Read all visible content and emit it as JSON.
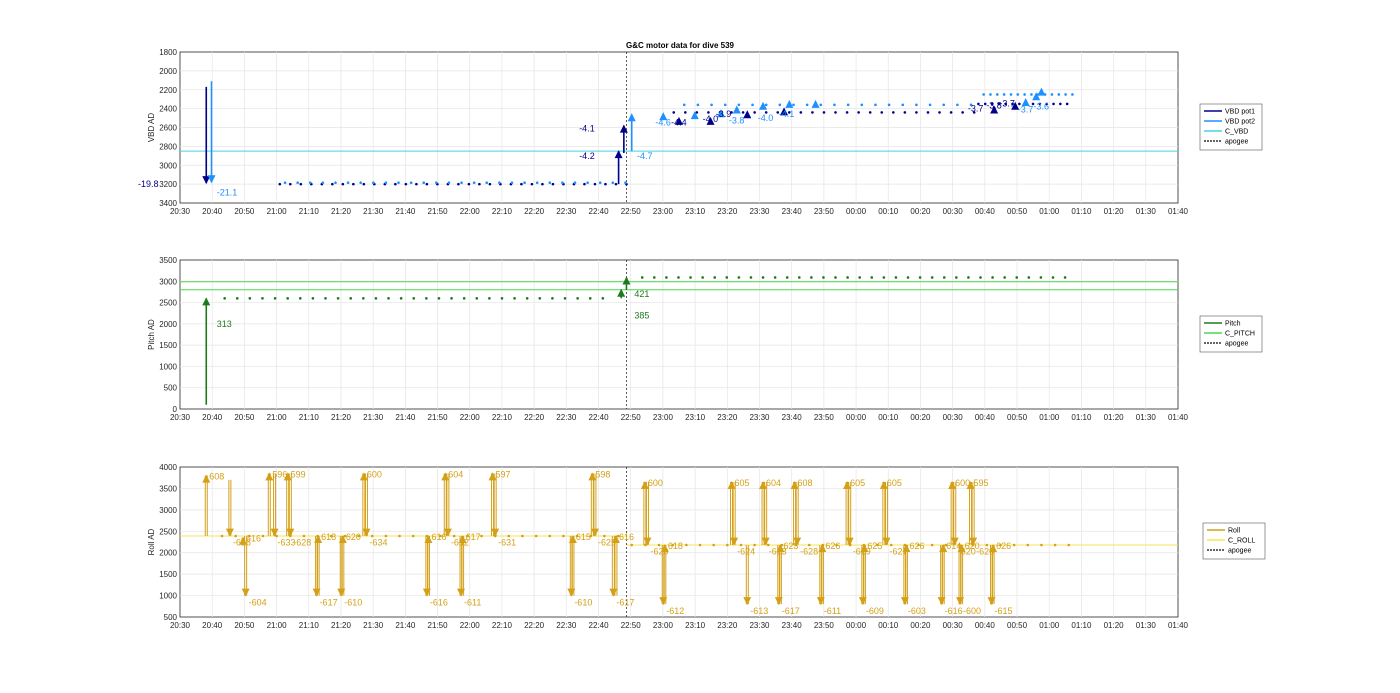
{
  "figure": {
    "title": "G&C motor data for dive 539"
  },
  "colors": {
    "vbd_pot1": "#00008b",
    "vbd_pot2": "#1e90ff",
    "c_vbd": "#48d1e8",
    "pitch": "#1f7a1f",
    "c_pitch": "#4cd94c",
    "roll": "#d4a017",
    "c_roll": "#f5e55a",
    "apogee": "#333333",
    "grid": "#e5e5e5",
    "axis": "#262626"
  },
  "chart_data": [
    {
      "type": "scatter",
      "ylabel": "VBD AD",
      "yreverse": true,
      "ylim": [
        1800,
        3400
      ],
      "yticks": [
        1800,
        2000,
        2200,
        2400,
        2600,
        2800,
        3000,
        3200,
        3400
      ],
      "xlim": [
        0,
        190
      ],
      "xticks": [
        0,
        10,
        20,
        30,
        40,
        50,
        60,
        70,
        80,
        90,
        100,
        110,
        120,
        130,
        140,
        150,
        160,
        170,
        180,
        190
      ],
      "xticklabels": [
        "20:30",
        "20:40",
        "20:50",
        "21:00",
        "21:10",
        "21:20",
        "21:30",
        "21:40",
        "21:50",
        "22:00",
        "22:10",
        "22:20",
        "22:30",
        "22:40",
        "22:50",
        "23:00",
        "23:10",
        "23:20",
        "23:30",
        "23:40",
        "23:50",
        "00:00",
        "00:10",
        "00:20",
        "00:30",
        "00:40",
        "00:50",
        "01:00",
        "01:10",
        "01:20",
        "01:30",
        "01:40"
      ],
      "apogee_x": 85,
      "hlines": [
        {
          "y": 2850,
          "color": "c_vbd"
        }
      ],
      "legend": [
        "VBD pot1",
        "VBD pot2",
        "C_VBD",
        "apogee"
      ],
      "dot_series": [
        {
          "color": "vbd_pot1",
          "y": 3200,
          "x0": 19,
          "x1": 85.5,
          "step": 2
        },
        {
          "color": "vbd_pot2",
          "y": 3185,
          "x0": 20,
          "x1": 85.5,
          "step": 2.4
        },
        {
          "color": "vbd_pot1",
          "y": 2440,
          "x0": 94,
          "x1": 152,
          "step": 2.2
        },
        {
          "color": "vbd_pot2",
          "y": 2360,
          "x0": 96,
          "x1": 152,
          "step": 2.6
        },
        {
          "color": "vbd_pot1",
          "y": 2350,
          "x0": 152,
          "x1": 169,
          "step": 1.3
        },
        {
          "color": "vbd_pot2",
          "y": 2250,
          "x0": 153,
          "x1": 171,
          "step": 1.3
        }
      ],
      "arrows": [
        {
          "x": 5,
          "y0": 2170,
          "y1": 3190,
          "color": "vbd_pot1",
          "label": "-19.8",
          "lx": -8,
          "ly": 3200,
          "lc": "vbd_pot1"
        },
        {
          "x": 6,
          "y0": 2110,
          "y1": 3180,
          "color": "vbd_pot2",
          "label": "-21.1",
          "lx": 7,
          "ly": 3290,
          "lc": "vbd_pot2"
        },
        {
          "x": 83.5,
          "y0": 3200,
          "y1": 2850,
          "color": "vbd_pot1",
          "label": "-4.2",
          "lx": 76,
          "ly": 2900,
          "lc": "vbd_pot1"
        },
        {
          "x": 84.5,
          "y0": 2870,
          "y1": 2580,
          "color": "vbd_pot1",
          "label": "-4.1",
          "lx": 76,
          "ly": 2610,
          "lc": "vbd_pot1"
        },
        {
          "x": 86,
          "y0": 2850,
          "y1": 2460,
          "color": "vbd_pot2",
          "label": "-4.7",
          "lx": 87,
          "ly": 2900,
          "lc": "vbd_pot2"
        }
      ],
      "tri_markers": [
        {
          "x": 92,
          "y": 2490,
          "color": "vbd_pot2"
        },
        {
          "x": 95,
          "y": 2540,
          "color": "vbd_pot1"
        },
        {
          "x": 98,
          "y": 2480,
          "color": "vbd_pot2"
        },
        {
          "x": 101,
          "y": 2540,
          "color": "vbd_pot1"
        },
        {
          "x": 103,
          "y": 2460,
          "color": "vbd_pot2"
        },
        {
          "x": 106,
          "y": 2420,
          "color": "vbd_pot2"
        },
        {
          "x": 108,
          "y": 2470,
          "color": "vbd_pot1"
        },
        {
          "x": 111,
          "y": 2380,
          "color": "vbd_pot2"
        },
        {
          "x": 115,
          "y": 2440,
          "color": "vbd_pot1"
        },
        {
          "x": 116,
          "y": 2360,
          "color": "vbd_pot2"
        },
        {
          "x": 121,
          "y": 2360,
          "color": "vbd_pot2"
        },
        {
          "x": 155,
          "y": 2420,
          "color": "vbd_pot1"
        },
        {
          "x": 159,
          "y": 2380,
          "color": "vbd_pot1"
        },
        {
          "x": 161,
          "y": 2340,
          "color": "vbd_pot2"
        },
        {
          "x": 163,
          "y": 2280,
          "color": "vbd_pot2"
        },
        {
          "x": 164,
          "y": 2230,
          "color": "vbd_pot2"
        }
      ],
      "labels": [
        {
          "x": 90.5,
          "y": 2580,
          "t": "-4.6",
          "c": "vbd_pot2"
        },
        {
          "x": 93.5,
          "y": 2580,
          "t": "-4.4",
          "c": "vbd_pot1"
        },
        {
          "x": 99.5,
          "y": 2540,
          "t": "-4.0",
          "c": "vbd_pot1"
        },
        {
          "x": 102,
          "y": 2490,
          "t": "-3.9",
          "c": "vbd_pot1"
        },
        {
          "x": 104.5,
          "y": 2560,
          "t": "-3.8",
          "c": "vbd_pot2"
        },
        {
          "x": 110,
          "y": 2530,
          "t": "-4.0",
          "c": "vbd_pot2"
        },
        {
          "x": 114,
          "y": 2490,
          "t": "-4.1",
          "c": "vbd_pot2"
        },
        {
          "x": 150,
          "y": 2430,
          "t": "-3.7",
          "c": "vbd_pot1"
        },
        {
          "x": 153.5,
          "y": 2400,
          "t": "-3.8",
          "c": "vbd_pot1"
        },
        {
          "x": 156,
          "y": 2380,
          "t": "-3.7",
          "c": "vbd_pot1"
        },
        {
          "x": 159.5,
          "y": 2440,
          "t": "-3.7",
          "c": "vbd_pot2"
        },
        {
          "x": 162.5,
          "y": 2410,
          "t": "-3.6",
          "c": "vbd_pot2"
        }
      ]
    },
    {
      "type": "scatter",
      "ylabel": "Pitch AD",
      "yreverse": false,
      "ylim": [
        0,
        3500
      ],
      "yticks": [
        0,
        500,
        1000,
        1500,
        2000,
        2500,
        3000,
        3500
      ],
      "xlim": [
        0,
        190
      ],
      "xticks": [
        0,
        10,
        20,
        30,
        40,
        50,
        60,
        70,
        80,
        90,
        100,
        110,
        120,
        130,
        140,
        150,
        160,
        170,
        180,
        190
      ],
      "xticklabels": [
        "20:30",
        "20:40",
        "20:50",
        "21:00",
        "21:10",
        "21:20",
        "21:30",
        "21:40",
        "21:50",
        "22:00",
        "22:10",
        "22:20",
        "22:30",
        "22:40",
        "22:50",
        "23:00",
        "23:10",
        "23:20",
        "23:30",
        "23:40",
        "23:50",
        "00:00",
        "00:10",
        "00:20",
        "00:30",
        "00:40",
        "00:50",
        "01:00",
        "01:10",
        "01:20",
        "01:30",
        "01:40"
      ],
      "apogee_x": 85,
      "hlines": [
        {
          "y": 2990,
          "color": "c_pitch"
        },
        {
          "y": 2800,
          "color": "c_pitch",
          "x0": 0,
          "x1": 85
        },
        {
          "y": 2800,
          "color": "c_pitch",
          "x0": 85,
          "x1": 190
        }
      ],
      "legend": [
        "Pitch",
        "C_PITCH",
        "apogee"
      ],
      "dot_series": [
        {
          "color": "pitch",
          "y": 2600,
          "x0": 8.5,
          "x1": 82,
          "step": 2.4
        },
        {
          "color": "pitch",
          "y": 3090,
          "x0": 88,
          "x1": 169,
          "step": 2.3
        }
      ],
      "arrows": [
        {
          "x": 5,
          "y0": 100,
          "y1": 2600,
          "color": "pitch",
          "label": "313",
          "lx": 7,
          "ly": 2000,
          "lc": "pitch"
        },
        {
          "x": 84,
          "y0": 2600,
          "y1": 2800,
          "color": "pitch",
          "label": "385",
          "lx": 86.5,
          "ly": 2200,
          "lc": "pitch"
        },
        {
          "x": 85,
          "y0": 2800,
          "y1": 3090,
          "color": "pitch",
          "label": "421",
          "lx": 86.5,
          "ly": 2700,
          "lc": "pitch"
        }
      ],
      "tri_markers": [],
      "labels": []
    },
    {
      "type": "scatter",
      "ylabel": "Roll AD",
      "yreverse": false,
      "ylim": [
        500,
        4000
      ],
      "yticks": [
        500,
        1000,
        1500,
        2000,
        2500,
        3000,
        3500,
        4000
      ],
      "xlim": [
        0,
        190
      ],
      "xticks": [
        0,
        10,
        20,
        30,
        40,
        50,
        60,
        70,
        80,
        90,
        100,
        110,
        120,
        130,
        140,
        150,
        160,
        170,
        180,
        190
      ],
      "xticklabels": [
        "20:30",
        "20:40",
        "20:50",
        "21:00",
        "21:10",
        "21:20",
        "21:30",
        "21:40",
        "21:50",
        "22:00",
        "22:10",
        "22:20",
        "22:30",
        "22:40",
        "22:50",
        "23:00",
        "23:10",
        "23:20",
        "23:30",
        "23:40",
        "23:50",
        "00:00",
        "00:10",
        "00:20",
        "00:30",
        "00:40",
        "00:50",
        "01:00",
        "01:10",
        "01:20",
        "01:30",
        "01:40"
      ],
      "apogee_x": 85,
      "hlines": [
        {
          "y": 2390,
          "color": "c_roll",
          "x0": 0,
          "x1": 85
        },
        {
          "y": 2180,
          "color": "c_roll",
          "x0": 85,
          "x1": 190
        }
      ],
      "legend": [
        "Roll",
        "C_ROLL",
        "apogee"
      ],
      "dot_series": [
        {
          "color": "roll",
          "y": 2390,
          "x0": 8,
          "x1": 84,
          "step": 2.6
        },
        {
          "color": "roll",
          "y": 2180,
          "x0": 86,
          "x1": 170,
          "step": 2.6
        }
      ],
      "roll_events": [
        {
          "x": 5,
          "y0": 2390,
          "y1": 3800,
          "label": "608"
        },
        {
          "x": 9.5,
          "y0": 3700,
          "y1": 2400,
          "label": "-626"
        },
        {
          "x": 12,
          "y0": 2300,
          "y1": 2350,
          "label": "616"
        },
        {
          "x": 12.5,
          "y0": 2390,
          "y1": 1000,
          "label": "-604"
        },
        {
          "x": 17,
          "y0": 2390,
          "y1": 3850,
          "label": "596"
        },
        {
          "x": 18,
          "y0": 3850,
          "y1": 2400,
          "label": "-633"
        },
        {
          "x": 20.5,
          "y0": 2390,
          "y1": 3850,
          "label": "599"
        },
        {
          "x": 21,
          "y0": 3850,
          "y1": 2400,
          "label": "-628"
        },
        {
          "x": 26,
          "y0": 2390,
          "y1": 1000,
          "label": "-617"
        },
        {
          "x": 26.3,
          "y0": 1000,
          "y1": 2390,
          "label": "618"
        },
        {
          "x": 30.7,
          "y0": 2390,
          "y1": 1000,
          "label": "-610"
        },
        {
          "x": 31,
          "y0": 1000,
          "y1": 2390,
          "label": "620"
        },
        {
          "x": 35,
          "y0": 2390,
          "y1": 3850,
          "label": "600"
        },
        {
          "x": 35.5,
          "y0": 3850,
          "y1": 2400,
          "label": "-634"
        },
        {
          "x": 47,
          "y0": 2390,
          "y1": 1000,
          "label": "-616"
        },
        {
          "x": 47.3,
          "y0": 1000,
          "y1": 2390,
          "label": "616"
        },
        {
          "x": 50.5,
          "y0": 2390,
          "y1": 3850,
          "label": "604"
        },
        {
          "x": 51,
          "y0": 3850,
          "y1": 2400,
          "label": "-632"
        },
        {
          "x": 53.5,
          "y0": 2390,
          "y1": 1000,
          "label": "-611"
        },
        {
          "x": 53.8,
          "y0": 1000,
          "y1": 2390,
          "label": "617"
        },
        {
          "x": 59.5,
          "y0": 2390,
          "y1": 3850,
          "label": "597"
        },
        {
          "x": 60,
          "y0": 3850,
          "y1": 2400,
          "label": "-631"
        },
        {
          "x": 74.5,
          "y0": 2390,
          "y1": 1000,
          "label": "-610"
        },
        {
          "x": 74.8,
          "y0": 1000,
          "y1": 2390,
          "label": "615"
        },
        {
          "x": 78.5,
          "y0": 2390,
          "y1": 3850,
          "label": "598"
        },
        {
          "x": 79,
          "y0": 3850,
          "y1": 2400,
          "label": "-625"
        },
        {
          "x": 82.5,
          "y0": 2390,
          "y1": 1000,
          "label": "-617"
        },
        {
          "x": 83,
          "y0": 1000,
          "y1": 2390,
          "label": "616"
        },
        {
          "x": 88.5,
          "y0": 2180,
          "y1": 3650,
          "label": "600"
        },
        {
          "x": 89,
          "y0": 3650,
          "y1": 2190,
          "label": "-620"
        },
        {
          "x": 92,
          "y0": 2180,
          "y1": 800,
          "label": "-612"
        },
        {
          "x": 92.3,
          "y0": 800,
          "y1": 2180,
          "label": "618"
        },
        {
          "x": 105,
          "y0": 2180,
          "y1": 3650,
          "label": "605"
        },
        {
          "x": 105.5,
          "y0": 3650,
          "y1": 2190,
          "label": "-624"
        },
        {
          "x": 108,
          "y0": 2180,
          "y1": 800,
          "label": "-613"
        },
        {
          "x": 111,
          "y0": 2180,
          "y1": 3650,
          "label": "604"
        },
        {
          "x": 111.5,
          "y0": 3650,
          "y1": 2190,
          "label": "-623"
        },
        {
          "x": 114,
          "y0": 2180,
          "y1": 800,
          "label": "-617"
        },
        {
          "x": 114.3,
          "y0": 800,
          "y1": 2180,
          "label": "623"
        },
        {
          "x": 117,
          "y0": 2180,
          "y1": 3650,
          "label": "608"
        },
        {
          "x": 117.5,
          "y0": 3650,
          "y1": 2190,
          "label": "-628"
        },
        {
          "x": 122,
          "y0": 2180,
          "y1": 800,
          "label": "-611"
        },
        {
          "x": 122.3,
          "y0": 800,
          "y1": 2180,
          "label": "626"
        },
        {
          "x": 127,
          "y0": 2180,
          "y1": 3650,
          "label": "605"
        },
        {
          "x": 127.5,
          "y0": 3650,
          "y1": 2190,
          "label": "-629"
        },
        {
          "x": 130,
          "y0": 2180,
          "y1": 800,
          "label": "-609"
        },
        {
          "x": 130.3,
          "y0": 800,
          "y1": 2180,
          "label": "625"
        },
        {
          "x": 134,
          "y0": 2180,
          "y1": 3650,
          "label": "605"
        },
        {
          "x": 134.5,
          "y0": 3650,
          "y1": 2190,
          "label": "-627"
        },
        {
          "x": 138,
          "y0": 2180,
          "y1": 800,
          "label": "-603"
        },
        {
          "x": 138.3,
          "y0": 800,
          "y1": 2180,
          "label": "626"
        },
        {
          "x": 145,
          "y0": 2180,
          "y1": 800,
          "label": "-616"
        },
        {
          "x": 145.3,
          "y0": 800,
          "y1": 2180,
          "label": "614"
        },
        {
          "x": 147,
          "y0": 2180,
          "y1": 3650,
          "label": "600"
        },
        {
          "x": 147.5,
          "y0": 3650,
          "y1": 2190,
          "label": "-620"
        },
        {
          "x": 148.5,
          "y0": 2180,
          "y1": 800,
          "label": "-600"
        },
        {
          "x": 148.8,
          "y0": 800,
          "y1": 2180,
          "label": "620"
        },
        {
          "x": 150.5,
          "y0": 2180,
          "y1": 3650,
          "label": "595"
        },
        {
          "x": 151,
          "y0": 3650,
          "y1": 2190,
          "label": "-620"
        },
        {
          "x": 154.5,
          "y0": 2180,
          "y1": 800,
          "label": "-615"
        },
        {
          "x": 154.8,
          "y0": 800,
          "y1": 2180,
          "label": "626"
        }
      ]
    }
  ]
}
